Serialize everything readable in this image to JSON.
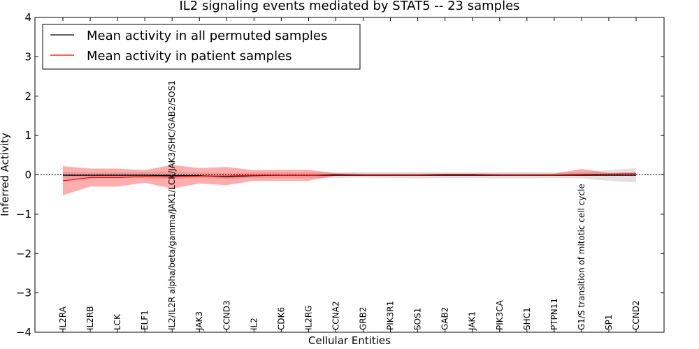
{
  "chart_data": {
    "type": "line",
    "title": "IL2 signaling events mediated by STAT5 -- 23 samples",
    "xlabel": "Cellular Entities",
    "ylabel": "Inferred Activity",
    "ylim": [
      -4,
      4
    ],
    "yticks": [
      {
        "value": -4,
        "label": "−4"
      },
      {
        "value": -3,
        "label": "−3"
      },
      {
        "value": -2,
        "label": "−2"
      },
      {
        "value": -1,
        "label": "−1"
      },
      {
        "value": 0,
        "label": "0"
      },
      {
        "value": 1,
        "label": "1"
      },
      {
        "value": 2,
        "label": "2"
      },
      {
        "value": 3,
        "label": "3"
      },
      {
        "value": 4,
        "label": "4"
      }
    ],
    "categories": [
      "IL2RA",
      "IL2RB",
      "LCK",
      "ELF1",
      "IL2/IL2R alpha/beta/gamma/JAK1/LCK/JAK3/SHC/GAB2/SOS1",
      "JAK3",
      "CCND3",
      "IL2",
      "CDK6",
      "IL2RG",
      "CCNA2",
      "GRB2",
      "PIK3R1",
      "SOS1",
      "GAB2",
      "JAK1",
      "PIK3CA",
      "SHC1",
      "PTPN11",
      "G1/S transition of mitotic cell cycle",
      "SP1",
      "CCND2"
    ],
    "legend": {
      "location": "upper-left",
      "entries": [
        "Mean activity in all permuted samples",
        "Mean activity in patient samples"
      ]
    },
    "series": [
      {
        "name": "Mean activity in all permuted samples",
        "color": "#000000",
        "band_color": "#c8c8c8",
        "values": [
          -0.01,
          -0.01,
          -0.01,
          -0.01,
          -0.02,
          -0.02,
          -0.05,
          -0.02,
          -0.01,
          -0.01,
          -0.01,
          -0.01,
          -0.01,
          -0.01,
          -0.01,
          -0.01,
          -0.01,
          -0.01,
          -0.01,
          -0.01,
          -0.01,
          -0.01
        ],
        "band_lower": [
          -0.09,
          -0.08,
          -0.08,
          -0.09,
          -0.1,
          -0.08,
          -0.1,
          -0.08,
          -0.08,
          -0.08,
          -0.08,
          -0.07,
          -0.08,
          -0.09,
          -0.08,
          -0.08,
          -0.09,
          -0.09,
          -0.08,
          -0.09,
          -0.15,
          -0.19
        ],
        "band_upper": [
          0.07,
          0.06,
          0.06,
          0.07,
          0.07,
          0.06,
          0.04,
          0.06,
          0.06,
          0.06,
          0.06,
          0.07,
          0.06,
          0.07,
          0.06,
          0.06,
          0.07,
          0.07,
          0.06,
          0.07,
          0.12,
          0.17
        ]
      },
      {
        "name": "Mean activity in patient samples",
        "color": "#ff0000",
        "band_color": "#ff0000",
        "values": [
          -0.15,
          -0.07,
          -0.07,
          -0.04,
          -0.05,
          -0.03,
          -0.03,
          -0.01,
          -0.01,
          -0.01,
          0.01,
          0.0,
          0.0,
          0.0,
          0.01,
          0.01,
          0.0,
          0.0,
          0.0,
          0.01,
          0.02,
          0.03
        ],
        "band_lower": [
          -0.52,
          -0.3,
          -0.3,
          -0.2,
          -0.35,
          -0.22,
          -0.26,
          -0.15,
          -0.15,
          -0.15,
          -0.02,
          -0.02,
          -0.02,
          -0.02,
          -0.02,
          -0.02,
          -0.02,
          -0.02,
          -0.02,
          -0.02,
          0.0,
          0.0
        ],
        "band_upper": [
          0.22,
          0.16,
          0.16,
          0.12,
          0.25,
          0.17,
          0.2,
          0.12,
          0.13,
          0.13,
          0.04,
          0.03,
          0.03,
          0.03,
          0.03,
          0.03,
          0.03,
          0.03,
          0.03,
          0.15,
          0.05,
          0.06
        ]
      }
    ],
    "grid": false
  }
}
